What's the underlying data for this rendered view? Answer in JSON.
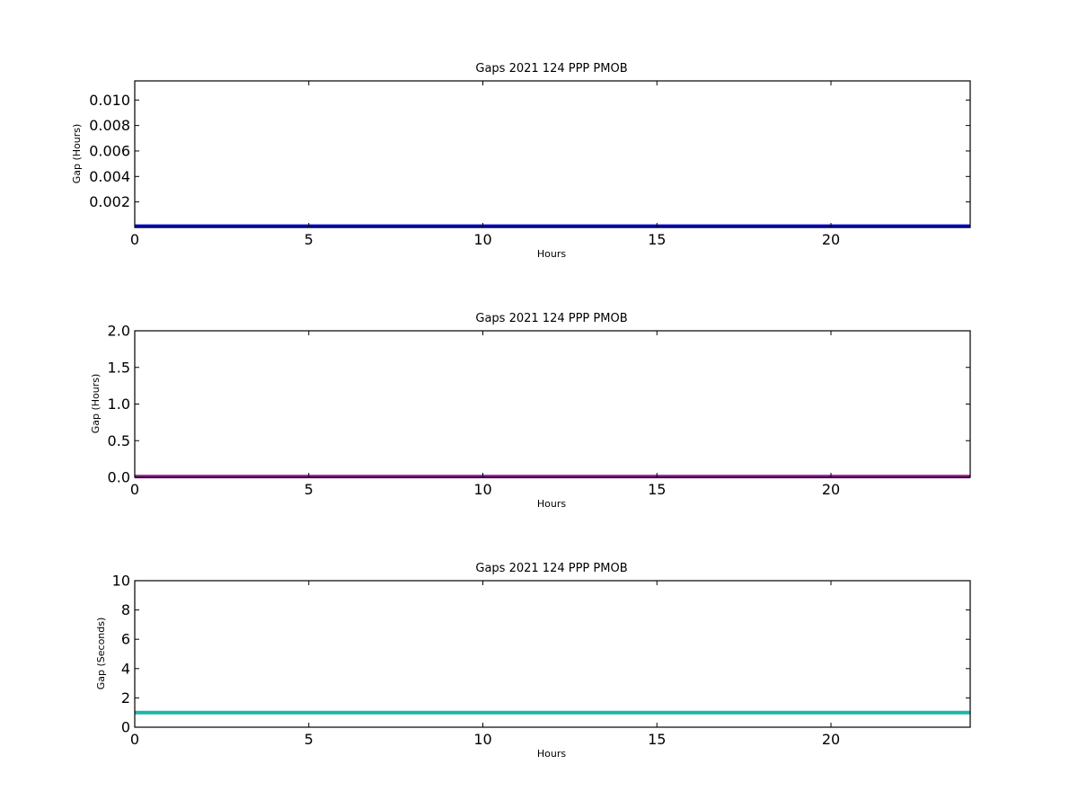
{
  "chart_data": [
    {
      "type": "line",
      "title": "Gaps 2021 124 PPP  PMOB",
      "xlabel": "Hours",
      "ylabel": "Gap (Hours)",
      "xlim": [
        0,
        24
      ],
      "ylim": [
        0,
        0.0115
      ],
      "xticks": [
        "0",
        "5",
        "10",
        "15",
        "20"
      ],
      "yticks": [
        "0.002",
        "0.004",
        "0.006",
        "0.008",
        "0.010"
      ],
      "grid": false,
      "series": [
        {
          "color": "#0000cc",
          "x": [
            0,
            24
          ],
          "y": [
            0.0001,
            0.0001
          ]
        }
      ]
    },
    {
      "type": "line",
      "title": "Gaps 2021 124 PPP  PMOB",
      "xlabel": "Hours",
      "ylabel": "Gap (Hours)",
      "xlim": [
        0,
        24
      ],
      "ylim": [
        0,
        2.0
      ],
      "xticks": [
        "0",
        "5",
        "10",
        "15",
        "20"
      ],
      "yticks": [
        "0.0",
        "0.5",
        "1.0",
        "1.5",
        "2.0"
      ],
      "grid": false,
      "series": [
        {
          "color": "#a020a0",
          "x": [
            0,
            24
          ],
          "y": [
            0.01,
            0.01
          ]
        }
      ]
    },
    {
      "type": "line",
      "title": "Gaps 2021 124 PPP  PMOB",
      "xlabel": "Hours",
      "ylabel": "Gap (Seconds)",
      "xlim": [
        0,
        24
      ],
      "ylim": [
        0,
        10
      ],
      "xticks": [
        "0",
        "5",
        "10",
        "15",
        "20"
      ],
      "yticks": [
        "0",
        "2",
        "4",
        "6",
        "8",
        "10"
      ],
      "grid": false,
      "series": [
        {
          "color": "#1cb5ac",
          "x": [
            0,
            24
          ],
          "y": [
            1,
            1
          ]
        }
      ]
    }
  ]
}
